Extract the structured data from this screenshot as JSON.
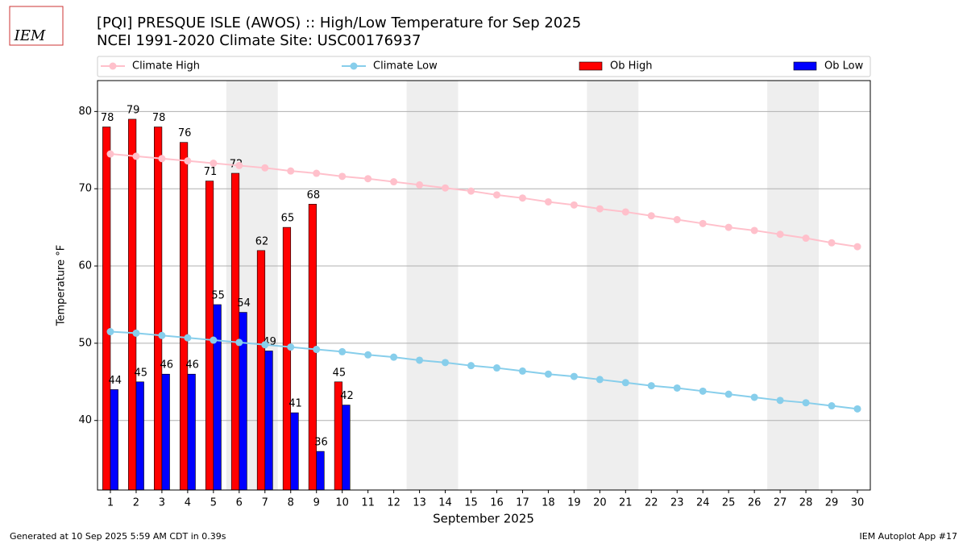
{
  "chart_data": {
    "type": "bar",
    "title": "[PQI] PRESQUE ISLE (AWOS) :: High/Low Temperature for Sep 2025",
    "subtitle": "NCEI 1991-2020 Climate Site: USC00176937",
    "xlabel": "September 2025",
    "ylabel": "Temperature °F",
    "footer_left": "Generated at 10 Sep 2025 5:59 AM CDT in 0.39s",
    "footer_right": "IEM Autoplot App #17",
    "logo_text": "IEM",
    "x": [
      1,
      2,
      3,
      4,
      5,
      6,
      7,
      8,
      9,
      10,
      11,
      12,
      13,
      14,
      15,
      16,
      17,
      18,
      19,
      20,
      21,
      22,
      23,
      24,
      25,
      26,
      27,
      28,
      29,
      30
    ],
    "xlim": [
      0.5,
      30.5
    ],
    "xticks": [
      1,
      2,
      3,
      4,
      5,
      6,
      7,
      8,
      9,
      10,
      11,
      12,
      13,
      14,
      15,
      16,
      17,
      18,
      19,
      20,
      21,
      22,
      23,
      24,
      25,
      26,
      27,
      28,
      29,
      30
    ],
    "ylim": [
      31,
      84
    ],
    "yticks": [
      40,
      50,
      60,
      70,
      80
    ],
    "grid": true,
    "legend": "top",
    "shaded_ranges": [
      [
        5.5,
        7.5
      ],
      [
        12.5,
        14.5
      ],
      [
        19.5,
        21.5
      ],
      [
        26.5,
        28.5
      ]
    ],
    "shade_color": "#eeeeee",
    "series": [
      {
        "name": "Climate High",
        "type": "line",
        "color": "#ffc0cb",
        "values": [
          74.5,
          74.2,
          73.9,
          73.6,
          73.3,
          73.0,
          72.7,
          72.3,
          72.0,
          71.6,
          71.3,
          70.9,
          70.5,
          70.1,
          69.7,
          69.2,
          68.8,
          68.3,
          67.9,
          67.4,
          67.0,
          66.5,
          66.0,
          65.5,
          65.0,
          64.6,
          64.1,
          63.6,
          63.0,
          62.5
        ]
      },
      {
        "name": "Climate Low",
        "type": "line",
        "color": "#87ceeb",
        "values": [
          51.5,
          51.3,
          51.0,
          50.7,
          50.4,
          50.1,
          49.8,
          49.5,
          49.2,
          48.9,
          48.5,
          48.2,
          47.8,
          47.5,
          47.1,
          46.8,
          46.4,
          46.0,
          45.7,
          45.3,
          44.9,
          44.5,
          44.2,
          43.8,
          43.4,
          43.0,
          42.6,
          42.3,
          41.9,
          41.5
        ]
      },
      {
        "name": "Ob High",
        "type": "bar",
        "color": "#ff0000",
        "values": [
          78,
          79,
          78,
          76,
          71,
          72,
          62,
          65,
          68,
          45,
          null,
          null,
          null,
          null,
          null,
          null,
          null,
          null,
          null,
          null,
          null,
          null,
          null,
          null,
          null,
          null,
          null,
          null,
          null,
          null
        ]
      },
      {
        "name": "Ob Low",
        "type": "bar",
        "color": "#0000ff",
        "values": [
          44,
          45,
          46,
          46,
          55,
          54,
          49,
          41,
          36,
          42,
          null,
          null,
          null,
          null,
          null,
          null,
          null,
          null,
          null,
          null,
          null,
          null,
          null,
          null,
          null,
          null,
          null,
          null,
          null,
          null
        ]
      }
    ]
  }
}
